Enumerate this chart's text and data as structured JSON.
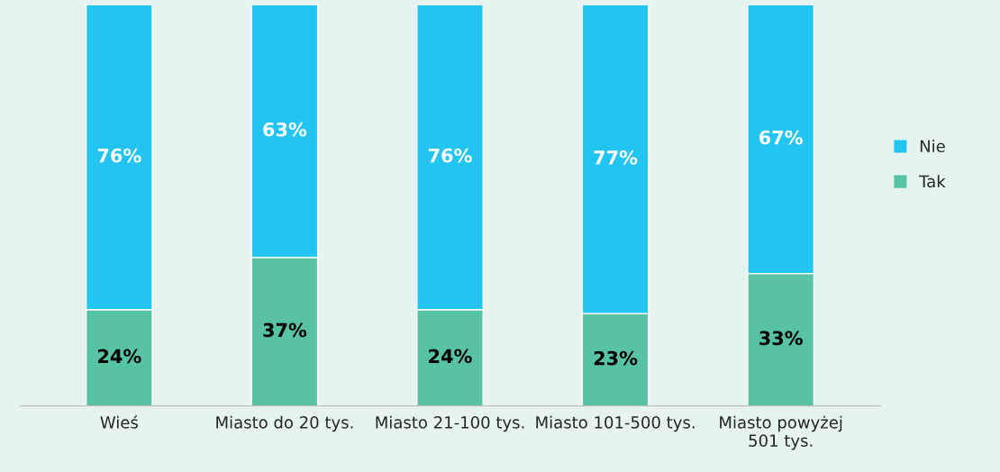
{
  "chart_data": {
    "type": "bar",
    "stacked": true,
    "legend": "right",
    "categories": [
      "Wieś",
      "Miasto do 20 tys.",
      "Miasto 21-100 tys.",
      "Miasto 101-500 tys.",
      "Miasto powyżej\n501 tys."
    ],
    "series": [
      {
        "name": "Tak",
        "color": "#57c3a3",
        "values": [
          24,
          37,
          24,
          23,
          33
        ],
        "value_labels": [
          "24%",
          "37%",
          "24%",
          "23%",
          "33%"
        ]
      },
      {
        "name": "Nie",
        "color": "#22c4f2",
        "values": [
          76,
          63,
          76,
          77,
          67
        ],
        "value_labels": [
          "76%",
          "63%",
          "76%",
          "77%",
          "67%"
        ]
      }
    ]
  }
}
